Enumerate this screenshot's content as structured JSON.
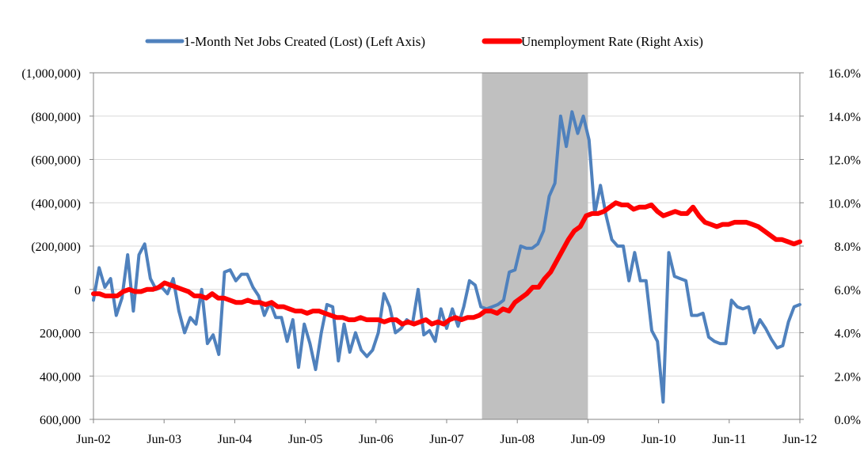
{
  "chart_data": {
    "type": "line",
    "title": "",
    "legend_position": "top",
    "grid": "horizontal",
    "x_tick_labels": [
      "Jun-02",
      "Jun-03",
      "Jun-04",
      "Jun-05",
      "Jun-06",
      "Jun-07",
      "Jun-08",
      "Jun-09",
      "Jun-10",
      "Jun-11",
      "Jun-12"
    ],
    "y_left_tick_labels": [
      "(1,000,000)",
      "(800,000)",
      "(600,000)",
      "(400,000)",
      "(200,000)",
      "0",
      "200,000",
      "400,000",
      "600,000"
    ],
    "y_right_tick_labels": [
      "16.0%",
      "14.0%",
      "12.0%",
      "10.0%",
      "8.0%",
      "6.0%",
      "4.0%",
      "2.0%",
      "0.0%"
    ],
    "ylim_left": [
      600000,
      -1000000
    ],
    "ylim_right": [
      0,
      16
    ],
    "recession_shade": {
      "start": "Dec-07",
      "end": "Jun-09",
      "color": "#c0c0c0"
    },
    "series": [
      {
        "name": "1-Month Net Jobs Created (Lost) (Left Axis)",
        "axis": "left",
        "color": "#4f81bd",
        "values": [
          50000,
          -100000,
          -10000,
          -50000,
          120000,
          40000,
          -160000,
          100000,
          -160000,
          -210000,
          -50000,
          0,
          -10000,
          20000,
          -50000,
          100000,
          200000,
          130000,
          160000,
          0,
          250000,
          210000,
          300000,
          -80000,
          -90000,
          -40000,
          -70000,
          -70000,
          -10000,
          30000,
          120000,
          60000,
          130000,
          130000,
          240000,
          140000,
          360000,
          160000,
          250000,
          370000,
          200000,
          70000,
          80000,
          330000,
          160000,
          290000,
          200000,
          280000,
          310000,
          280000,
          200000,
          20000,
          80000,
          200000,
          180000,
          140000,
          160000,
          0,
          210000,
          190000,
          240000,
          90000,
          180000,
          90000,
          170000,
          80000,
          -40000,
          -20000,
          80000,
          90000,
          80000,
          70000,
          50000,
          -80000,
          -90000,
          -200000,
          -190000,
          -190000,
          -210000,
          -270000,
          -430000,
          -490000,
          -800000,
          -660000,
          -820000,
          -720000,
          -800000,
          -690000,
          -350000,
          -480000,
          -340000,
          -230000,
          -200000,
          -200000,
          -40000,
          -170000,
          -40000,
          -40000,
          190000,
          240000,
          520000,
          -170000,
          -60000,
          -50000,
          -40000,
          120000,
          120000,
          110000,
          220000,
          240000,
          250000,
          250000,
          50000,
          80000,
          90000,
          80000,
          200000,
          140000,
          180000,
          230000,
          270000,
          260000,
          150000,
          80000,
          70000
        ]
      },
      {
        "name": "Unemployment Rate (Right Axis)",
        "axis": "right",
        "color": "#ff0000",
        "values": [
          5.8,
          5.8,
          5.7,
          5.7,
          5.7,
          5.9,
          6.0,
          5.9,
          5.9,
          6.0,
          6.0,
          6.1,
          6.3,
          6.2,
          6.1,
          6.0,
          5.9,
          5.7,
          5.7,
          5.6,
          5.8,
          5.6,
          5.6,
          5.5,
          5.4,
          5.4,
          5.5,
          5.4,
          5.4,
          5.3,
          5.4,
          5.2,
          5.2,
          5.1,
          5.0,
          5.0,
          4.9,
          5.0,
          5.0,
          4.9,
          4.8,
          4.7,
          4.7,
          4.6,
          4.6,
          4.7,
          4.6,
          4.6,
          4.6,
          4.5,
          4.6,
          4.6,
          4.4,
          4.5,
          4.4,
          4.5,
          4.6,
          4.4,
          4.5,
          4.4,
          4.6,
          4.7,
          4.6,
          4.7,
          4.7,
          4.8,
          5.0,
          5.0,
          4.9,
          5.1,
          5.0,
          5.4,
          5.6,
          5.8,
          6.1,
          6.1,
          6.5,
          6.8,
          7.3,
          7.8,
          8.3,
          8.7,
          8.9,
          9.4,
          9.5,
          9.5,
          9.6,
          9.8,
          10.0,
          9.9,
          9.9,
          9.7,
          9.8,
          9.8,
          9.9,
          9.6,
          9.4,
          9.5,
          9.6,
          9.5,
          9.5,
          9.8,
          9.4,
          9.1,
          9.0,
          8.9,
          9.0,
          9.0,
          9.1,
          9.1,
          9.1,
          9.0,
          8.9,
          8.7,
          8.5,
          8.3,
          8.3,
          8.2,
          8.1,
          8.2
        ]
      }
    ]
  }
}
